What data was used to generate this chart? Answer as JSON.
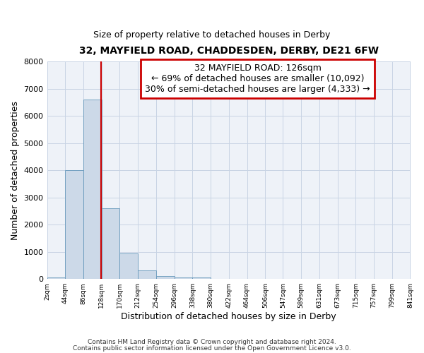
{
  "title1": "32, MAYFIELD ROAD, CHADDESDEN, DERBY, DE21 6FW",
  "title2": "Size of property relative to detached houses in Derby",
  "xlabel": "Distribution of detached houses by size in Derby",
  "ylabel": "Number of detached properties",
  "bar_color": "#ccd9e8",
  "bar_edge_color": "#6699bb",
  "bin_edges": [
    2,
    44,
    86,
    128,
    170,
    212,
    254,
    296,
    338,
    380,
    422,
    464,
    506,
    547,
    589,
    631,
    673,
    715,
    757,
    799,
    841
  ],
  "bar_heights": [
    70,
    4000,
    6600,
    2600,
    950,
    320,
    110,
    70,
    50,
    0,
    0,
    0,
    0,
    0,
    0,
    0,
    0,
    0,
    0,
    0
  ],
  "tick_labels": [
    "2sqm",
    "44sqm",
    "86sqm",
    "128sqm",
    "170sqm",
    "212sqm",
    "254sqm",
    "296sqm",
    "338sqm",
    "380sqm",
    "422sqm",
    "464sqm",
    "506sqm",
    "547sqm",
    "589sqm",
    "631sqm",
    "673sqm",
    "715sqm",
    "757sqm",
    "799sqm",
    "841sqm"
  ],
  "ylim": [
    0,
    8000
  ],
  "yticks": [
    0,
    1000,
    2000,
    3000,
    4000,
    5000,
    6000,
    7000,
    8000
  ],
  "property_line_x": 126,
  "annotation_title": "32 MAYFIELD ROAD: 126sqm",
  "annotation_line1": "← 69% of detached houses are smaller (10,092)",
  "annotation_line2": "30% of semi-detached houses are larger (4,333) →",
  "box_color": "#cc0000",
  "bg_color": "#eef2f8",
  "grid_color": "#c8d4e4",
  "footer1": "Contains HM Land Registry data © Crown copyright and database right 2024.",
  "footer2": "Contains public sector information licensed under the Open Government Licence v3.0."
}
